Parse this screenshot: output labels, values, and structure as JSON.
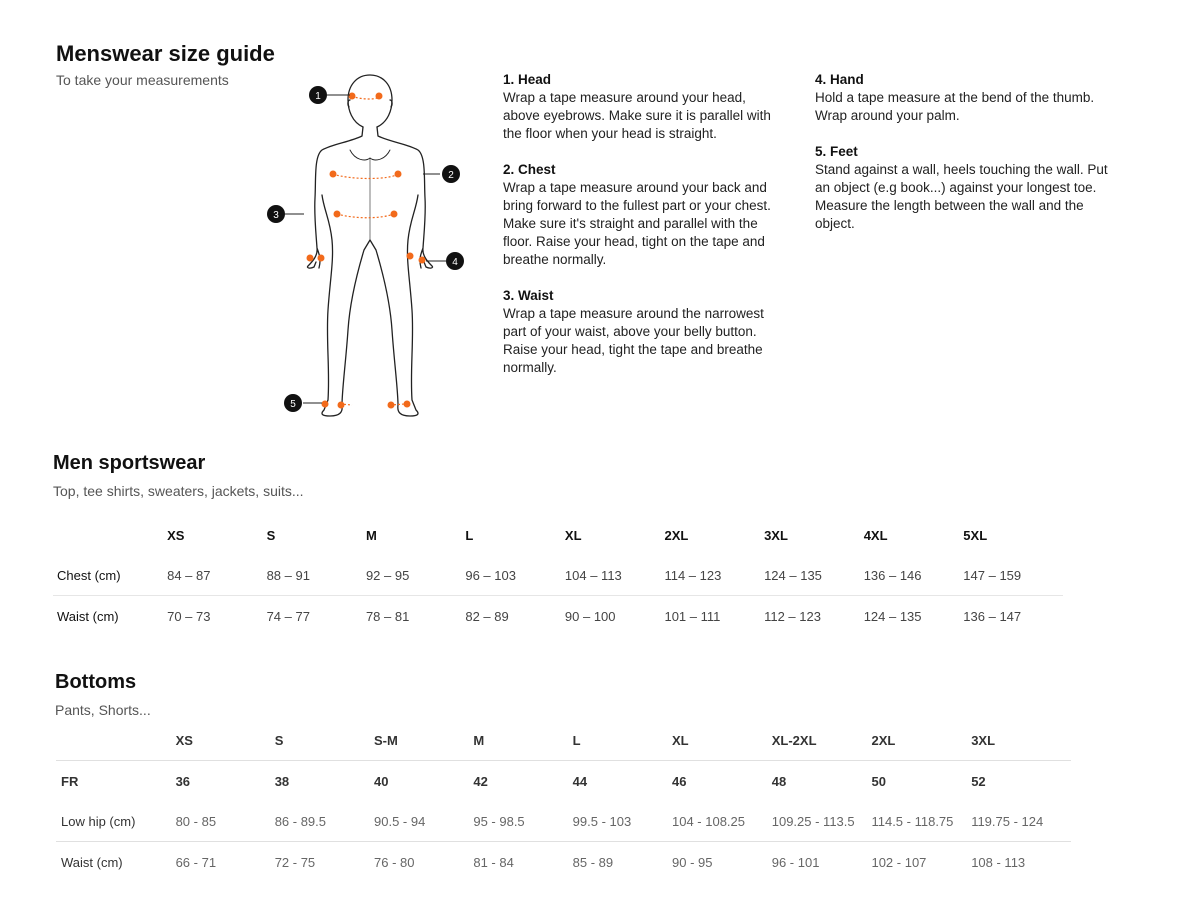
{
  "header": {
    "title": "Menswear size guide",
    "subtitle": "To take your measurements"
  },
  "figure": {
    "markers": [
      "1",
      "2",
      "3",
      "4",
      "5"
    ],
    "accent": "#f26a1b"
  },
  "steps": [
    {
      "title": "1. Head",
      "text": "Wrap a tape measure around your head, above eyebrows. Make sure it is parallel with the floor when your head is straight."
    },
    {
      "title": "2. Chest",
      "text": "Wrap a tape measure around your back and bring forward to the fullest part or your chest. Make sure it's straight and parallel with the floor. Raise your head, tight on the tape and breathe normally."
    },
    {
      "title": "3. Waist",
      "text": "Wrap a tape measure around the narrowest part of your waist, above your belly button. Raise your head, tight the tape and breathe normally."
    },
    {
      "title": "4. Hand",
      "text": "Hold a tape measure at the bend of the thumb. Wrap around your palm."
    },
    {
      "title": "5. Feet",
      "text": "Stand against a wall, heels touching the wall. Put an object (e.g book...) against your longest toe. Measure the length between the wall and the object."
    }
  ],
  "sportswear": {
    "title": "Men sportswear",
    "subtitle": "Top, tee shirts, sweaters, jackets, suits...",
    "sizes": [
      "XS",
      "S",
      "M",
      "L",
      "XL",
      "2XL",
      "3XL",
      "4XL",
      "5XL"
    ],
    "rows": [
      {
        "label": "Chest (cm)",
        "values": [
          "84 – 87",
          "88 – 91",
          "92 – 95",
          "96 – 103",
          "104 – 113",
          "114 – 123",
          "124 – 135",
          "136 – 146",
          "147 – 159"
        ]
      },
      {
        "label": "Waist (cm)",
        "values": [
          "70 – 73",
          "74 – 77",
          "78 – 81",
          "82 – 89",
          "90 – 100",
          "101 – 111",
          "112 – 123",
          "124 – 135",
          "136 – 147"
        ]
      }
    ]
  },
  "bottoms": {
    "title": "Bottoms",
    "subtitle": "Pants, Shorts...",
    "sizes": [
      "XS",
      "S",
      "S-M",
      "M",
      "L",
      "XL",
      "XL-2XL",
      "2XL",
      "3XL"
    ],
    "rows": [
      {
        "label": "FR",
        "values": [
          "36",
          "38",
          "40",
          "42",
          "44",
          "46",
          "48",
          "50",
          "52"
        ]
      },
      {
        "label": "Low hip (cm)",
        "values": [
          "80 - 85",
          "86 - 89.5",
          "90.5 - 94",
          "95 - 98.5",
          "99.5 - 103",
          "104 - 108.25",
          "109.25 - 113.5",
          "114.5 - 118.75",
          "119.75 - 124"
        ]
      },
      {
        "label": "Waist (cm)",
        "values": [
          "66 - 71",
          "72 - 75",
          "76 - 80",
          "81 - 84",
          "85 - 89",
          "90 - 95",
          "96 - 101",
          "102 - 107",
          "108 - 113"
        ]
      }
    ]
  }
}
